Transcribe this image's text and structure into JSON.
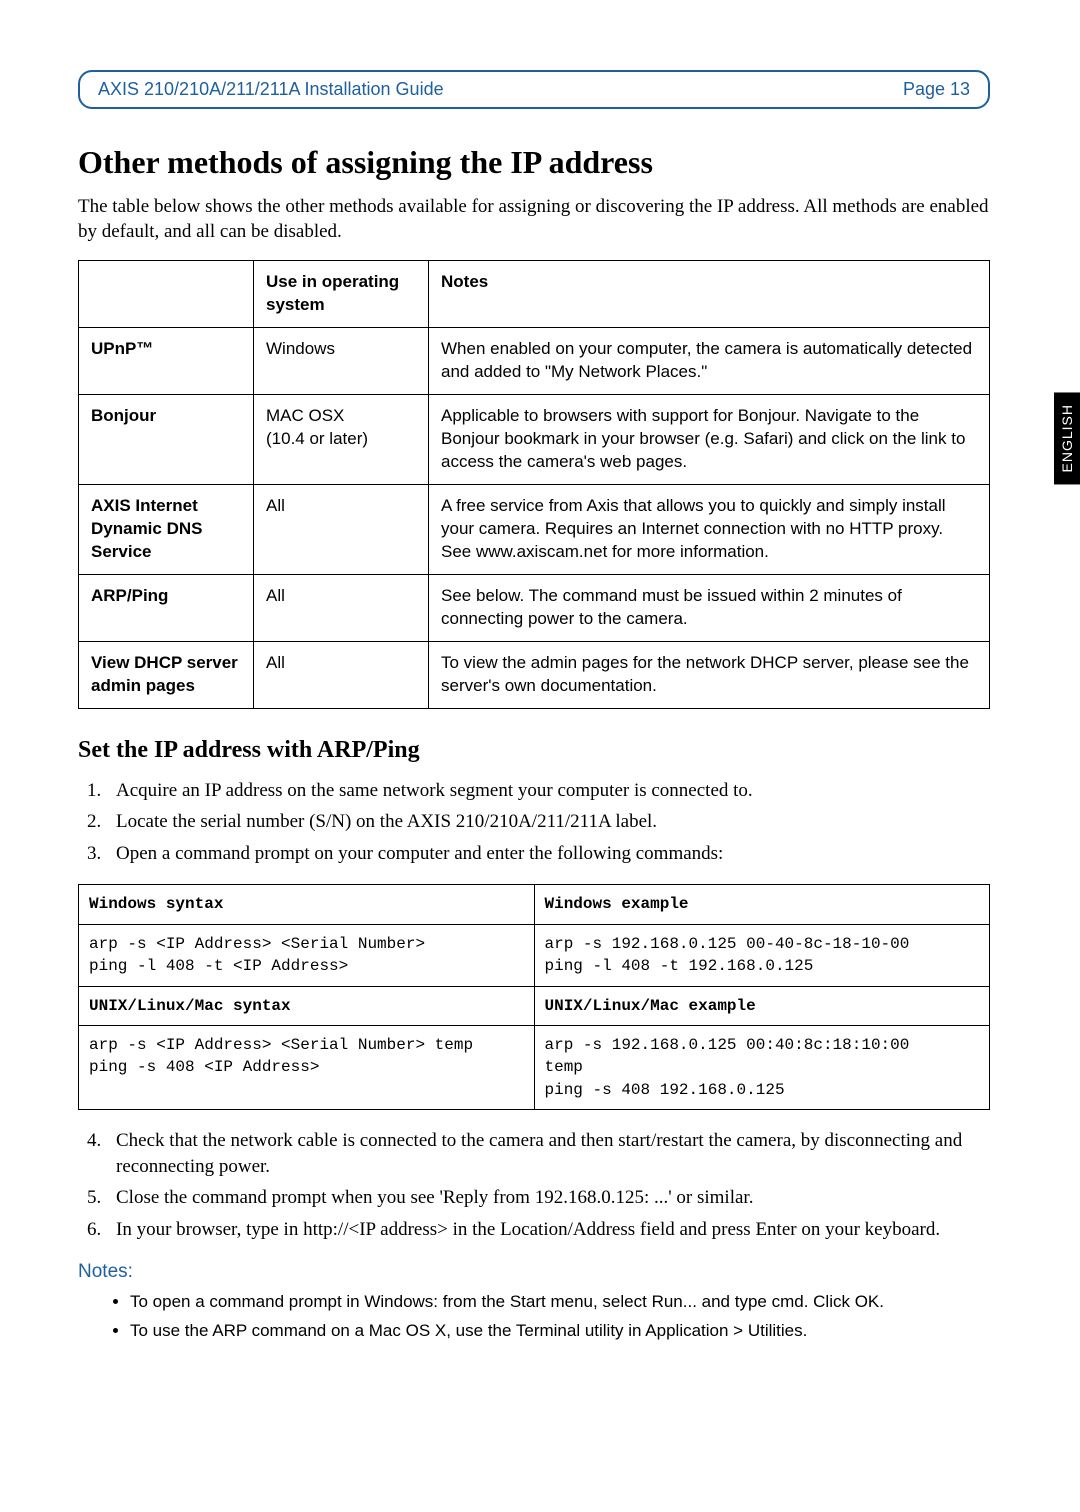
{
  "header": {
    "title": "AXIS 210/210A/211/211A Installation Guide",
    "page_label": "Page 13"
  },
  "h1": "Other methods of assigning the IP address",
  "intro": "The table below shows the other methods available for assigning or discovering the IP address. All methods are enabled by default, and all can be disabled.",
  "methods_table": {
    "columns": [
      "",
      "Use in operating system",
      "Notes"
    ],
    "rows": [
      [
        "UPnP™",
        "Windows",
        "When enabled on your computer, the camera is automatically detected and added to \"My Network Places.\""
      ],
      [
        "Bonjour",
        "MAC OSX\n(10.4 or later)",
        "Applicable to browsers with support for Bonjour. Navigate to the Bonjour bookmark in your browser (e.g. Safari) and click on the link to access the camera's web pages."
      ],
      [
        "AXIS Internet Dynamic DNS Service",
        "All",
        "A free service from Axis that allows you to quickly and simply install your camera. Requires an Internet connection with no HTTP proxy. See www.axiscam.net for more information."
      ],
      [
        "ARP/Ping",
        "All",
        "See below. The command must be issued within 2 minutes of connecting power to the camera."
      ],
      [
        "View DHCP server admin pages",
        "All",
        "To view the admin pages for the network DHCP server, please see the server's own documentation."
      ]
    ]
  },
  "h2": "Set the IP address with ARP/Ping",
  "ol1": [
    "Acquire an IP address on the same network segment your computer is connected to.",
    "Locate the serial number (S/N) on the AXIS 210/210A/211/211A label.",
    "Open a command prompt on your computer and enter the following commands:"
  ],
  "syntax_table": {
    "rows": [
      [
        "Windows syntax",
        "Windows example"
      ],
      [
        "arp -s <IP Address> <Serial Number>\nping -l 408 -t <IP Address>",
        "arp -s 192.168.0.125 00-40-8c-18-10-00\nping -l 408 -t 192.168.0.125"
      ],
      [
        "UNIX/Linux/Mac syntax",
        "UNIX/Linux/Mac example"
      ],
      [
        "arp -s <IP Address> <Serial Number> temp\nping -s 408 <IP Address>",
        "arp -s 192.168.0.125 00:40:8c:18:10:00\ntemp\nping -s 408 192.168.0.125"
      ]
    ],
    "header_rows": [
      0,
      2
    ]
  },
  "ol2": [
    "Check that the network cable is connected to the camera and then start/restart the camera, by disconnecting and reconnecting power.",
    "Close the command prompt when you see 'Reply from 192.168.0.125: ...' or similar.",
    "In your browser, type in http://<IP address> in the Location/Address field and press Enter on your keyboard."
  ],
  "notes_heading": "Notes:",
  "notes": [
    "To open a command prompt in Windows: from the Start menu, select Run... and type cmd. Click OK.",
    "To use the ARP command on a Mac OS X, use the Terminal utility in Application > Utilities."
  ],
  "side_tab": "ENGLISH",
  "colors": {
    "accent": "#1e5f9e",
    "text": "#000000",
    "background": "#ffffff"
  },
  "fonts": {
    "body_serif": "Georgia, Times New Roman, serif",
    "sans": "Arial, Helvetica, sans-serif",
    "mono": "Courier New, monospace"
  }
}
